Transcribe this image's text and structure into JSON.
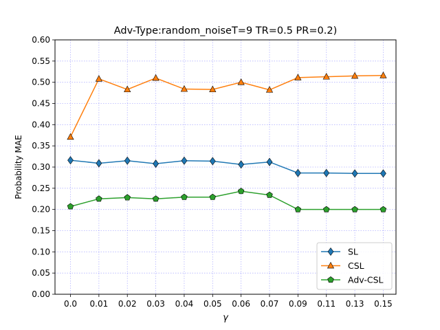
{
  "chart_data": {
    "type": "line",
    "title": "Adv-Type:random_noiseT=9 TR=0.5 PR=0.2)",
    "xlabel": "γ",
    "ylabel": "Probability MAE",
    "categories": [
      "0.0",
      "0.01",
      "0.02",
      "0.03",
      "0.04",
      "0.05",
      "0.06",
      "0.07",
      "0.09",
      "0.11",
      "0.13",
      "0.15"
    ],
    "ylim": [
      0.0,
      0.6
    ],
    "yticks": [
      "0.00",
      "0.05",
      "0.10",
      "0.15",
      "0.20",
      "0.25",
      "0.30",
      "0.35",
      "0.40",
      "0.45",
      "0.50",
      "0.55",
      "0.60"
    ],
    "grid": true,
    "legend_position": "lower-right",
    "series": [
      {
        "name": "SL",
        "color": "#1f77b4",
        "marker": "diamond",
        "values": [
          0.316,
          0.309,
          0.315,
          0.308,
          0.315,
          0.314,
          0.306,
          0.312,
          0.286,
          0.286,
          0.285,
          0.285
        ]
      },
      {
        "name": "CSL",
        "color": "#ff7f0e",
        "marker": "triangle",
        "values": [
          0.371,
          0.508,
          0.483,
          0.51,
          0.484,
          0.483,
          0.5,
          0.482,
          0.511,
          0.513,
          0.515,
          0.516
        ]
      },
      {
        "name": "Adv-CSL",
        "color": "#2ca02c",
        "marker": "pentagon",
        "values": [
          0.207,
          0.225,
          0.228,
          0.225,
          0.229,
          0.229,
          0.243,
          0.234,
          0.2,
          0.2,
          0.2,
          0.2
        ]
      }
    ]
  }
}
